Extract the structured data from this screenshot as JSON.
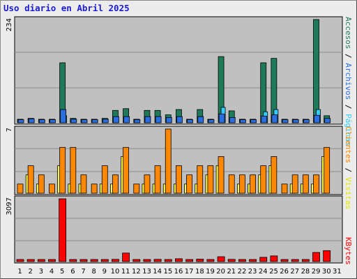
{
  "title": "Uso diario en Abril 2025",
  "chart_data": {
    "type": "bar",
    "title": "Uso diario en Abril 2025",
    "categories": [
      "1",
      "2",
      "3",
      "4",
      "5",
      "6",
      "7",
      "8",
      "9",
      "10",
      "11",
      "12",
      "13",
      "14",
      "15",
      "16",
      "17",
      "18",
      "19",
      "20",
      "21",
      "22",
      "23",
      "24",
      "25",
      "26",
      "27",
      "28",
      "29",
      "30",
      "31"
    ],
    "weekend_days": [
      "5",
      "6",
      "12",
      "13",
      "19",
      "20",
      "26",
      "27"
    ],
    "panels": {
      "hits_pages_files": {
        "ymax_label": "234",
        "ymax": 234,
        "series": [
          {
            "name": "Accesos",
            "color": "#1f7a5a",
            "values": [
              8,
              10,
              8,
              8,
              136,
              10,
              8,
              8,
              10,
              28,
              32,
              8,
              28,
              28,
              18,
              30,
              8,
              30,
              8,
              150,
              27,
              8,
              8,
              136,
              146,
              8,
              8,
              8,
              234,
              16,
              0
            ]
          },
          {
            "name": "Páginas",
            "color": "#33ccff",
            "values": [
              0,
              0,
              0,
              0,
              16,
              0,
              0,
              0,
              0,
              0,
              0,
              0,
              0,
              0,
              0,
              0,
              0,
              0,
              0,
              35,
              0,
              0,
              0,
              25,
              30,
              0,
              0,
              0,
              30,
              0,
              0
            ]
          },
          {
            "name": "Archivos",
            "color": "#2a6ee0",
            "values": [
              7,
              9,
              7,
              7,
              30,
              8,
              7,
              7,
              8,
              14,
              14,
              7,
              14,
              14,
              12,
              14,
              7,
              14,
              7,
              20,
              12,
              7,
              7,
              15,
              18,
              7,
              7,
              7,
              17,
              10,
              0
            ]
          }
        ]
      },
      "visits_clients": {
        "ymax_label": "7",
        "ymax": 7,
        "series": [
          {
            "name": "Visitas",
            "color": "#ffff44",
            "values": [
              0,
              2,
              1,
              0,
              3,
              1,
              1,
              0,
              1,
              1,
              4,
              0,
              1,
              1,
              1,
              1,
              1,
              1,
              2,
              3,
              0,
              1,
              1,
              2,
              3,
              0,
              1,
              1,
              1,
              4,
              0
            ]
          },
          {
            "name": "Clientes",
            "color": "#ff8800",
            "values": [
              1,
              3,
              2,
              1,
              5,
              5,
              2,
              1,
              3,
              2,
              5,
              1,
              2,
              3,
              7,
              3,
              2,
              3,
              3,
              4,
              2,
              2,
              2,
              3,
              4,
              1,
              2,
              2,
              2,
              5,
              0
            ]
          }
        ]
      },
      "kbytes": {
        "ymax_label": "3097",
        "ymax": 3097,
        "series": [
          {
            "name": "KBytes",
            "color": "#ff0000",
            "values": [
              40,
              60,
              30,
              30,
              3097,
              30,
              30,
              30,
              30,
              110,
              420,
              40,
              100,
              110,
              60,
              140,
              30,
              120,
              40,
              240,
              110,
              40,
              40,
              210,
              280,
              30,
              30,
              40,
              450,
              540,
              0
            ]
          }
        ]
      }
    },
    "side_legend": {
      "top": [
        {
          "text": "Accesos",
          "color": "#1f7a5a"
        },
        {
          "text": " / ",
          "color": "#000000"
        },
        {
          "text": "Archivos",
          "color": "#2a6ee0"
        },
        {
          "text": " / ",
          "color": "#000000"
        },
        {
          "text": "Páginas",
          "color": "#33ccff"
        }
      ],
      "middle": [
        {
          "text": "Clientes",
          "color": "#ff8800"
        },
        {
          "text": " / ",
          "color": "#000000"
        },
        {
          "text": "Visitas",
          "color": "#e6e600"
        }
      ],
      "bottom": [
        {
          "text": "KBytes",
          "color": "#ff0000"
        }
      ]
    },
    "colors": {
      "plot_bg": "#c0c0c0",
      "grid": "#8c8c8c",
      "weekend_label": "#00a060"
    }
  }
}
